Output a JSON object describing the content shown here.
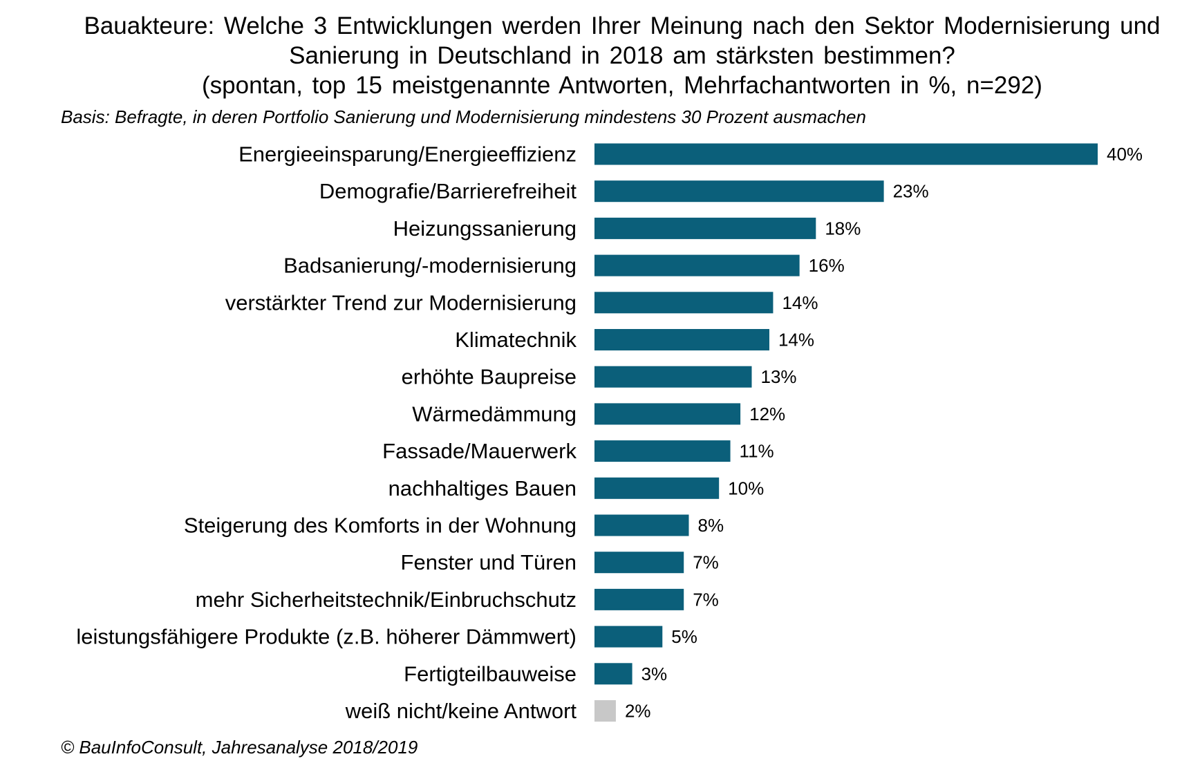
{
  "chart_data": {
    "type": "bar",
    "orientation": "horizontal",
    "title_lines": [
      "Bauakteure: Welche 3 Entwicklungen werden Ihrer Meinung nach den Sektor Modernisierung und",
      "Sanierung in Deutschland in 2018 am stärksten bestimmen?",
      "(spontan, top 15 meistgenannte Antworten, Mehrfachantworten in %, n=292)"
    ],
    "subtitle": "Basis: Befragte, in deren Portfolio Sanierung und Modernisierung mindestens 30 Prozent ausmachen",
    "source": "© BauInfoConsult, Jahresanalyse 2018/2019",
    "categories": [
      "Energieeinsparung/Energieeffizienz",
      "Demografie/Barrierefreiheit",
      "Heizungssanierung",
      "Badsanierung/-modernisierung",
      "verstärkter Trend zur Modernisierung",
      "Klimatechnik",
      "erhöhte Baupreise",
      "Wärmedämmung",
      "Fassade/Mauerwerk",
      "nachhaltiges Bauen",
      "Steigerung des Komforts in der Wohnung",
      "Fenster und Türen",
      "mehr Sicherheitstechnik/Einbruchschutz",
      "leistungsfähigere Produkte (z.B. höherer Dämmwert)",
      "Fertigteilbauweise",
      "weiß nicht/keine Antwort"
    ],
    "values": [
      40,
      23,
      17.6,
      16.3,
      14.2,
      13.9,
      12.5,
      11.6,
      10.8,
      9.9,
      7.5,
      7.1,
      7.1,
      5.4,
      3.0,
      1.7
    ],
    "value_labels": [
      "40%",
      "23%",
      "18%",
      "16%",
      "14%",
      "14%",
      "13%",
      "12%",
      "11%",
      "10%",
      "8%",
      "7%",
      "7%",
      "5%",
      "3%",
      "2%"
    ],
    "bar_colors": [
      "#0b5f7a",
      "#0b5f7a",
      "#0b5f7a",
      "#0b5f7a",
      "#0b5f7a",
      "#0b5f7a",
      "#0b5f7a",
      "#0b5f7a",
      "#0b5f7a",
      "#0b5f7a",
      "#0b5f7a",
      "#0b5f7a",
      "#0b5f7a",
      "#0b5f7a",
      "#0b5f7a",
      "#c8c8c8"
    ],
    "xlim": [
      0,
      40
    ],
    "grid": false,
    "legend": "none"
  }
}
